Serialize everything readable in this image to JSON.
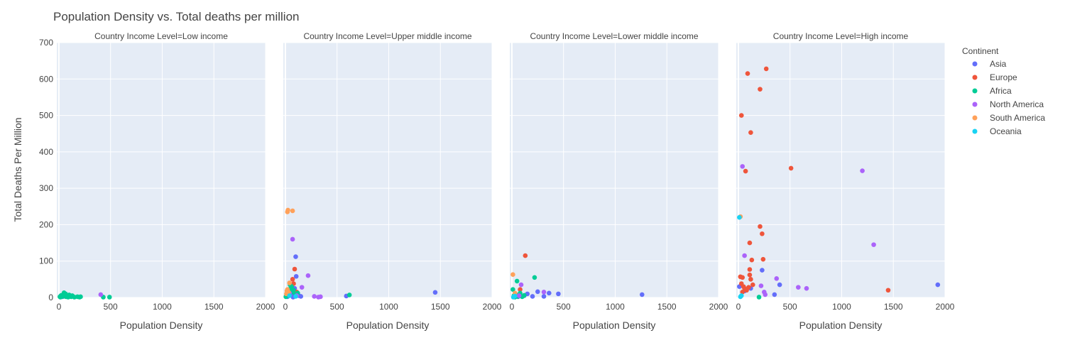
{
  "chart_data": {
    "type": "scatter",
    "title": "Population Density vs. Total deaths per million",
    "xlabel": "Population Density",
    "ylabel": "Total Deaths Per Million",
    "xlim": [
      -20,
      2000
    ],
    "ylim": [
      0,
      700
    ],
    "x_ticks": [
      0,
      500,
      1000,
      1500,
      2000
    ],
    "y_ticks": [
      0,
      100,
      200,
      300,
      400,
      500,
      600,
      700
    ],
    "grid": true,
    "legend": {
      "title": "Continent",
      "placement": "right",
      "entries": [
        {
          "name": "Asia",
          "color": "#636efa"
        },
        {
          "name": "Europe",
          "color": "#ef553b"
        },
        {
          "name": "Africa",
          "color": "#00cc96"
        },
        {
          "name": "North America",
          "color": "#ab63fa"
        },
        {
          "name": "South America",
          "color": "#ffa15a"
        },
        {
          "name": "Oceania",
          "color": "#19d3f3"
        }
      ]
    },
    "facets": [
      {
        "title": "Country Income Level=Low income",
        "series": [
          {
            "name": "Asia",
            "points": [
              [
                55,
                7
              ],
              [
                60,
                3
              ],
              [
                35,
                2
              ]
            ]
          },
          {
            "name": "Africa",
            "points": [
              [
                10,
                2
              ],
              [
                20,
                5
              ],
              [
                30,
                4
              ],
              [
                40,
                3
              ],
              [
                50,
                13
              ],
              [
                60,
                6
              ],
              [
                70,
                2
              ],
              [
                80,
                4
              ],
              [
                90,
                1
              ],
              [
                100,
                7
              ],
              [
                110,
                3
              ],
              [
                120,
                2
              ],
              [
                130,
                5
              ],
              [
                150,
                1
              ],
              [
                180,
                2
              ],
              [
                200,
                1
              ],
              [
                210,
                2
              ],
              [
                430,
                1
              ],
              [
                490,
                1
              ],
              [
                15,
                1
              ],
              [
                25,
                6
              ],
              [
                45,
                8
              ],
              [
                65,
                10
              ],
              [
                85,
                3
              ],
              [
                95,
                5
              ]
            ]
          },
          {
            "name": "North America",
            "points": [
              [
                405,
                8
              ]
            ]
          }
        ]
      },
      {
        "title": "Country Income Level=Upper middle income",
        "series": [
          {
            "name": "Asia",
            "points": [
              [
                100,
                112
              ],
              [
                105,
                58
              ],
              [
                90,
                25
              ],
              [
                130,
                5
              ],
              [
                150,
                3
              ],
              [
                590,
                4
              ],
              [
                1450,
                14
              ],
              [
                60,
                8
              ],
              [
                20,
                2
              ],
              [
                75,
                1
              ]
            ]
          },
          {
            "name": "Europe",
            "points": [
              [
                70,
                50
              ],
              [
                80,
                38
              ],
              [
                90,
                78
              ],
              [
                110,
                15
              ],
              [
                60,
                22
              ],
              [
                100,
                10
              ]
            ]
          },
          {
            "name": "Africa",
            "points": [
              [
                5,
                2
              ],
              [
                20,
                5
              ],
              [
                30,
                12
              ],
              [
                40,
                18
              ],
              [
                50,
                25
              ],
              [
                60,
                30
              ],
              [
                70,
                15
              ],
              [
                80,
                20
              ],
              [
                100,
                8
              ],
              [
                120,
                12
              ],
              [
                620,
                7
              ],
              [
                10,
                3
              ],
              [
                45,
                35
              ]
            ]
          },
          {
            "name": "North America",
            "points": [
              [
                70,
                160
              ],
              [
                220,
                60
              ],
              [
                160,
                28
              ],
              [
                280,
                3
              ],
              [
                320,
                1
              ],
              [
                340,
                2
              ],
              [
                110,
                5
              ],
              [
                40,
                12
              ]
            ]
          },
          {
            "name": "South America",
            "points": [
              [
                20,
                235
              ],
              [
                25,
                240
              ],
              [
                70,
                238
              ],
              [
                15,
                18
              ],
              [
                20,
                22
              ],
              [
                30,
                15
              ],
              [
                40,
                40
              ],
              [
                10,
                10
              ]
            ]
          },
          {
            "name": "Oceania",
            "points": [
              [
                40,
                5
              ],
              [
                100,
                3
              ]
            ]
          }
        ]
      },
      {
        "title": "Country Income Level=Lower middle income",
        "series": [
          {
            "name": "Asia",
            "points": [
              [
                150,
                10
              ],
              [
                250,
                16
              ],
              [
                360,
                12
              ],
              [
                450,
                10
              ],
              [
                310,
                3
              ],
              [
                1260,
                8
              ],
              [
                120,
                5
              ],
              [
                200,
                3
              ],
              [
                60,
                2
              ]
            ]
          },
          {
            "name": "Europe",
            "points": [
              [
                130,
                115
              ],
              [
                80,
                22
              ]
            ]
          },
          {
            "name": "Africa",
            "points": [
              [
                10,
                22
              ],
              [
                50,
                45
              ],
              [
                220,
                55
              ],
              [
                20,
                5
              ],
              [
                40,
                8
              ],
              [
                60,
                3
              ],
              [
                80,
                12
              ],
              [
                100,
                2
              ],
              [
                120,
                6
              ],
              [
                30,
                1
              ]
            ]
          },
          {
            "name": "North America",
            "points": [
              [
                90,
                35
              ],
              [
                310,
                15
              ],
              [
                70,
                5
              ]
            ]
          },
          {
            "name": "South America",
            "points": [
              [
                10,
                63
              ],
              [
                30,
                12
              ]
            ]
          },
          {
            "name": "Oceania",
            "points": [
              [
                20,
                2
              ],
              [
                30,
                4
              ],
              [
                15,
                1
              ]
            ]
          }
        ]
      },
      {
        "title": "Country Income Level=High income",
        "series": [
          {
            "name": "Asia",
            "points": [
              [
                230,
                75
              ],
              [
                400,
                35
              ],
              [
                350,
                8
              ],
              [
                1930,
                35
              ],
              [
                10,
                30
              ],
              [
                120,
                25
              ],
              [
                60,
                18
              ]
            ]
          },
          {
            "name": "Europe",
            "points": [
              [
                90,
                615
              ],
              [
                270,
                628
              ],
              [
                210,
                572
              ],
              [
                30,
                500
              ],
              [
                120,
                453
              ],
              [
                70,
                347
              ],
              [
                510,
                355
              ],
              [
                210,
                195
              ],
              [
                230,
                175
              ],
              [
                110,
                150
              ],
              [
                130,
                103
              ],
              [
                240,
                105
              ],
              [
                110,
                77
              ],
              [
                20,
                57
              ],
              [
                40,
                55
              ],
              [
                110,
                62
              ],
              [
                120,
                50
              ],
              [
                30,
                38
              ],
              [
                50,
                30
              ],
              [
                60,
                25
              ],
              [
                80,
                20
              ],
              [
                100,
                28
              ],
              [
                140,
                35
              ],
              [
                40,
                15
              ],
              [
                1450,
                20
              ]
            ]
          },
          {
            "name": "Africa",
            "points": [
              [
                200,
                1
              ]
            ]
          },
          {
            "name": "North America",
            "points": [
              [
                40,
                360
              ],
              [
                1200,
                348
              ],
              [
                1310,
                145
              ],
              [
                60,
                115
              ],
              [
                370,
                52
              ],
              [
                580,
                28
              ],
              [
                660,
                25
              ],
              [
                250,
                15
              ],
              [
                260,
                8
              ],
              [
                220,
                32
              ]
            ]
          },
          {
            "name": "South America",
            "points": [
              [
                20,
                222
              ]
            ]
          },
          {
            "name": "Oceania",
            "points": [
              [
                10,
                220
              ],
              [
                30,
                5
              ],
              [
                20,
                2
              ]
            ]
          }
        ]
      }
    ]
  }
}
